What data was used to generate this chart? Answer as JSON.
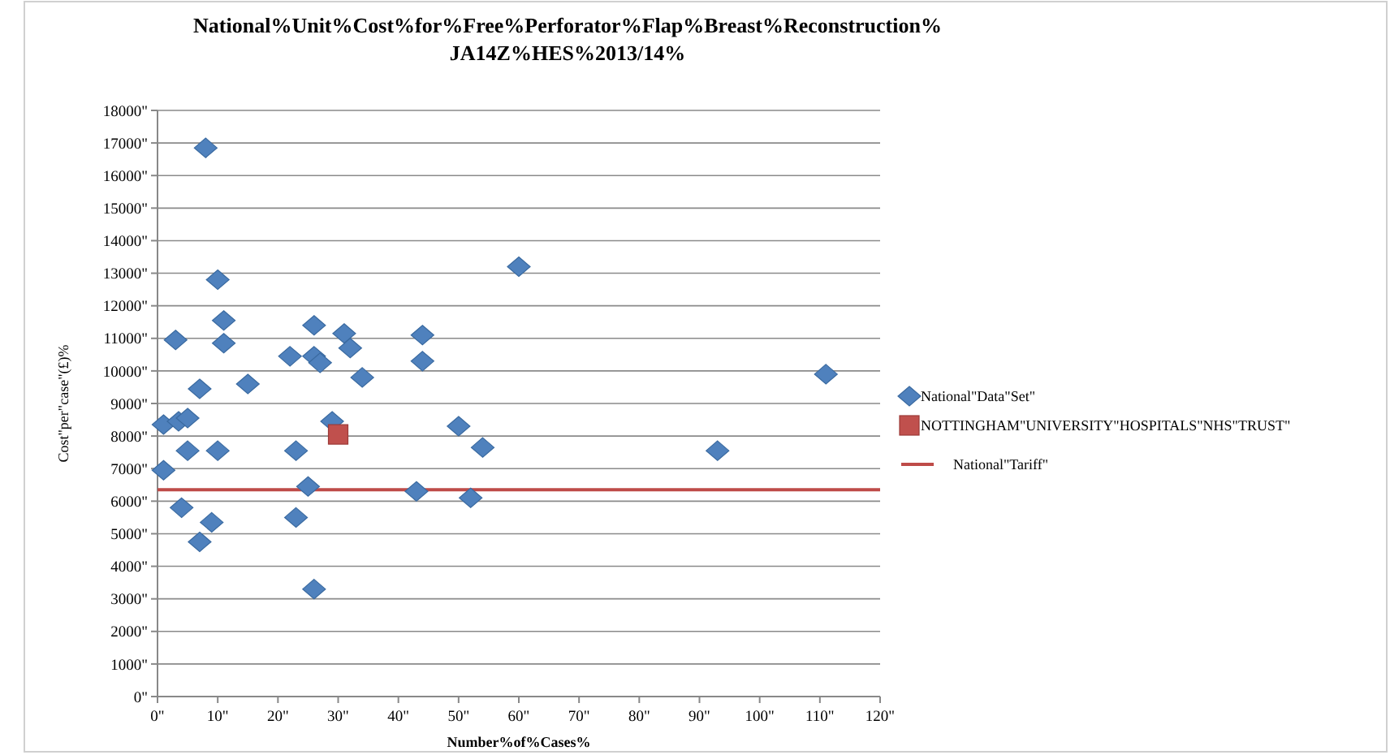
{
  "chart_data": {
    "type": "scatter",
    "title": "National%Unit%Cost%for%Free%Perforator%Flap%Breast%Reconstruction%",
    "subtitle": "JA14Z%HES%2013/14%",
    "xlabel": "Number%of%Cases%",
    "ylabel": "Cost\"per\"case\"(£)%",
    "xlim": [
      0,
      120
    ],
    "xticks": [
      {
        "value": 0,
        "label": "0\""
      },
      {
        "value": 10,
        "label": "10\""
      },
      {
        "value": 20,
        "label": "20\""
      },
      {
        "value": 30,
        "label": "30\""
      },
      {
        "value": 40,
        "label": "40\""
      },
      {
        "value": 50,
        "label": "50\""
      },
      {
        "value": 60,
        "label": "60\""
      },
      {
        "value": 70,
        "label": "70\""
      },
      {
        "value": 80,
        "label": "80\""
      },
      {
        "value": 90,
        "label": "90\""
      },
      {
        "value": 100,
        "label": "100\""
      },
      {
        "value": 110,
        "label": "110\""
      },
      {
        "value": 120,
        "label": "120\""
      }
    ],
    "ylim": [
      0,
      18000
    ],
    "yticks": [
      {
        "value": 0,
        "label": "0\""
      },
      {
        "value": 1000,
        "label": "1000\""
      },
      {
        "value": 2000,
        "label": "2000\""
      },
      {
        "value": 3000,
        "label": "3000\""
      },
      {
        "value": 4000,
        "label": "4000\""
      },
      {
        "value": 5000,
        "label": "5000\""
      },
      {
        "value": 6000,
        "label": "6000\""
      },
      {
        "value": 7000,
        "label": "7000\""
      },
      {
        "value": 8000,
        "label": "8000\""
      },
      {
        "value": 9000,
        "label": "9000\""
      },
      {
        "value": 10000,
        "label": "10000\""
      },
      {
        "value": 11000,
        "label": "11000\""
      },
      {
        "value": 12000,
        "label": "12000\""
      },
      {
        "value": 13000,
        "label": "13000\""
      },
      {
        "value": 14000,
        "label": "14000\""
      },
      {
        "value": 15000,
        "label": "15000\""
      },
      {
        "value": 16000,
        "label": "16000\""
      },
      {
        "value": 17000,
        "label": "17000\""
      },
      {
        "value": 18000,
        "label": "18000\""
      }
    ],
    "grid": "y",
    "legend": "right",
    "series": [
      {
        "name": "National\"Data\"Set\"",
        "color": "#4f81bd",
        "marker": "diamond",
        "x": [
          8,
          10,
          11,
          11,
          3,
          7,
          15,
          1,
          3.5,
          5,
          5,
          10,
          1,
          4,
          9,
          7,
          22,
          23,
          23,
          25,
          26,
          26,
          26,
          27,
          29,
          31,
          32,
          34,
          44,
          44,
          43,
          50,
          54,
          52,
          60,
          93,
          111
        ],
        "values": [
          16850,
          12800,
          11550,
          10850,
          10950,
          9450,
          9600,
          8350,
          8450,
          8550,
          7550,
          7550,
          6950,
          5800,
          5350,
          4750,
          10450,
          7550,
          5500,
          6450,
          3300,
          11400,
          10450,
          10250,
          8450,
          11150,
          10700,
          9800,
          11100,
          10300,
          6300,
          8300,
          7650,
          6100,
          13200,
          7550,
          9900
        ]
      },
      {
        "name": "NOTTINGHAM\"UNIVERSITY\"HOSPITALS\"NHS\"TRUST\"",
        "color": "#c0504d",
        "marker": "square",
        "x": [
          30
        ],
        "values": [
          8050
        ]
      }
    ],
    "ref_lines": [
      {
        "axis": "y",
        "value": 6350,
        "label": "National\"Tariff\"",
        "color": "#be4b48"
      }
    ]
  }
}
